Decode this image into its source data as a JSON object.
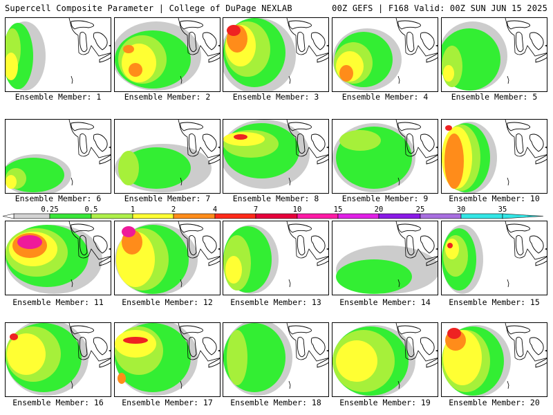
{
  "header": {
    "title_left": "Supercell Composite Parameter | College of DuPage NEXLAB",
    "title_right": "00Z GEFS | F168 Valid: 00Z SUN JUN 15 2025"
  },
  "panels": [
    {
      "label": "Ensemble Member: 1"
    },
    {
      "label": "Ensemble Member: 2"
    },
    {
      "label": "Ensemble Member: 3"
    },
    {
      "label": "Ensemble Member: 4"
    },
    {
      "label": "Ensemble Member: 5"
    },
    {
      "label": "Ensemble Member: 6"
    },
    {
      "label": "Ensemble Member: 7"
    },
    {
      "label": "Ensemble Member: 8"
    },
    {
      "label": "Ensemble Member: 9"
    },
    {
      "label": "Ensemble Member: 10"
    },
    {
      "label": "Ensemble Member: 11"
    },
    {
      "label": "Ensemble Member: 12"
    },
    {
      "label": "Ensemble Member: 13"
    },
    {
      "label": "Ensemble Member: 14"
    },
    {
      "label": "Ensemble Member: 15"
    },
    {
      "label": "Ensemble Member: 16"
    },
    {
      "label": "Ensemble Member: 17"
    },
    {
      "label": "Ensemble Member: 18"
    },
    {
      "label": "Ensemble Member: 19"
    },
    {
      "label": "Ensemble Member: 20"
    }
  ],
  "colorbar": {
    "labels": [
      "0.25",
      "0.5",
      "1",
      "2",
      "4",
      "7",
      "10",
      "15",
      "20",
      "25",
      "30",
      "35"
    ],
    "colors": [
      "#d3d3d3",
      "#39e639",
      "#aef04a",
      "#ffff33",
      "#ff8c1a",
      "#ff2a1a",
      "#e6003c",
      "#ff1aa6",
      "#e020e6",
      "#8a1ae6",
      "#a86ee0",
      "#33e6e6"
    ]
  },
  "palette": {
    "gray": "#cccccc",
    "green": "#33ee33",
    "lightgreen": "#a6f03a",
    "yellow": "#ffff33",
    "orange": "#ff8c1a",
    "red": "#ee2222",
    "magenta": "#ee1a9a"
  }
}
